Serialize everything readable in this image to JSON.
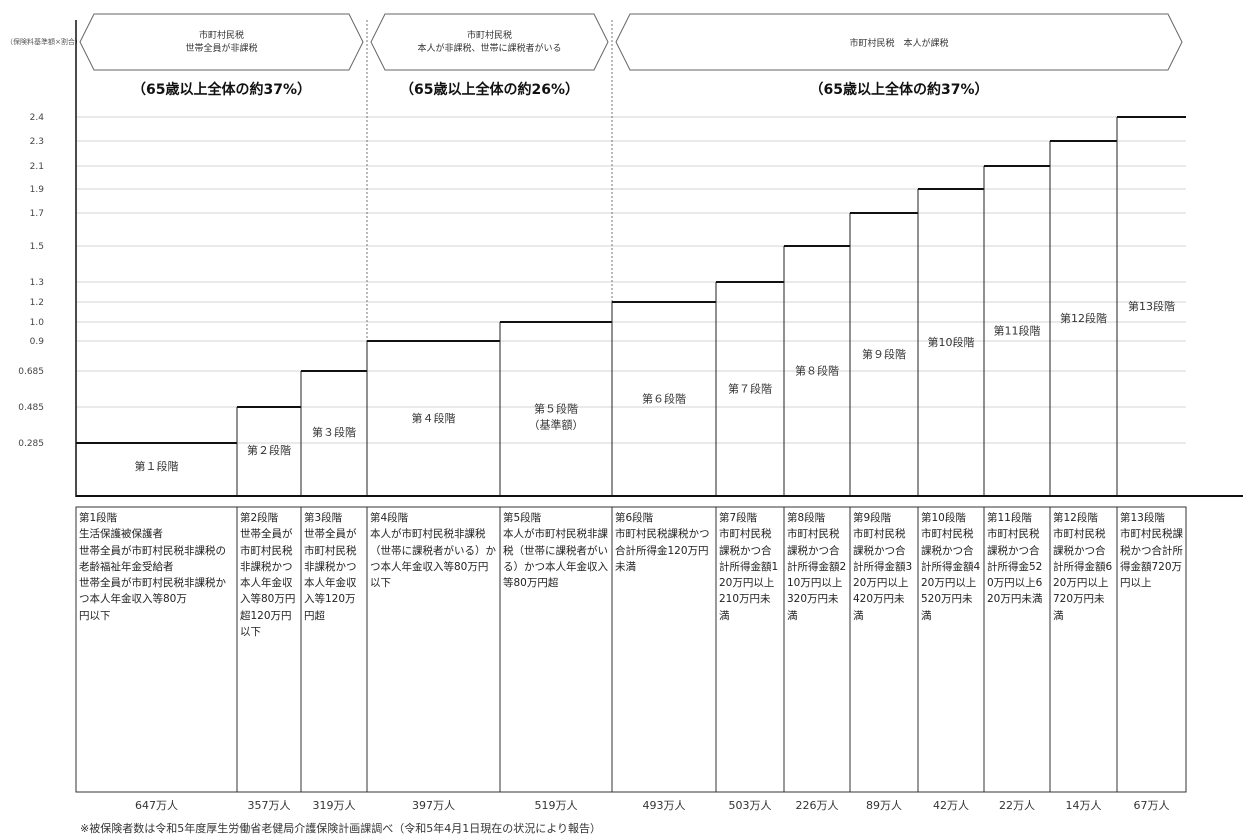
{
  "ylabel": "（保険料基準額×割合）",
  "groups": [
    {
      "title": "市町村民税\n世帯全員が非課税",
      "share": "（65歳以上全体の約37%）",
      "from": 0,
      "to": 3
    },
    {
      "title": "市町村民税\n本人が非課税、世帯に課税者がいる",
      "share": "（65歳以上全体の約26%）",
      "from": 3,
      "to": 5
    },
    {
      "title": "市町村民税　本人が課税",
      "share": "（65歳以上全体の約37%）",
      "from": 5,
      "to": 13
    }
  ],
  "footnote": "※被保険者数は令和5年度厚生労働省老健局介護保険計画課調べ（令和5年4月1日現在の状況により報告）",
  "chart_data": {
    "type": "bar",
    "title": "",
    "xlabel": "",
    "ylabel": "（保険料基準額×割合）",
    "yticks": [
      0.285,
      0.485,
      0.685,
      0.9,
      1.0,
      1.2,
      1.3,
      1.5,
      1.7,
      1.9,
      2.1,
      2.3,
      2.4
    ],
    "ytick_labels": [
      "0.285",
      "0.485",
      "0.685",
      "0.9",
      "1.0",
      "1.2",
      "1.3",
      "1.5",
      "1.7",
      "1.9",
      "2.1",
      "2.3",
      "2.4"
    ],
    "categories": [
      "第１段階",
      "第２段階",
      "第３段階",
      "第４段階",
      "第５段階",
      "第６段階",
      "第７段階",
      "第８段階",
      "第９段階",
      "第10段階",
      "第11段階",
      "第12段階",
      "第13段階"
    ],
    "sublabels": [
      "",
      "",
      "",
      "",
      "（基準額）",
      "",
      "",
      "",
      "",
      "",
      "",
      "",
      ""
    ],
    "values": [
      0.285,
      0.485,
      0.685,
      0.9,
      1.0,
      1.2,
      1.3,
      1.5,
      1.7,
      1.9,
      2.1,
      2.3,
      2.4
    ],
    "descriptions": [
      "第1段階\n生活保護被保護者\n世帯全員が市町村民税非課税の老齢福祉年金受給者\n世帯全員が市町村民税非課税かつ本人年金収入等80万\n円以下",
      "第2段階\n世帯全員が市町村民税非課税かつ本人年金収入等80万円超120万円以下",
      "第3段階\n世帯全員が市町村民税非課税かつ本人年金収入等120万円超",
      "第4段階\n本人が市町村民税非課税（世帯に課税者がいる）かつ本人年金収入等80万円以下",
      "第5段階\n本人が市町村民税非課税（世帯に課税者がいる）かつ本人年金収入等80万円超",
      "第6段階\n市町村民税課税かつ合計所得金120万円未満",
      "第7段階\n市町村民税課税かつ合計所得金額120万円以上210万円未満",
      "第8段階\n市町村民税課税かつ合計所得金額210万円以上320万円未満",
      "第9段階\n市町村民税課税かつ合計所得金額320万円以上420万円未満",
      "第10段階\n市町村民税課税かつ合計所得金額420万円以上520万円未満",
      "第11段階\n市町村民税課税かつ合計所得金520万円以上620万円未満",
      "第12段階\n市町村民税課税かつ合計所得金額620万円以上720万円未満",
      "第13段階\n市町村民税課税かつ合計所得金額720万円以上"
    ],
    "counts": [
      "647万人",
      "357万人",
      "319万人",
      "397万人",
      "519万人",
      "493万人",
      "503万人",
      "226万人",
      "89万人",
      "42万人",
      "22万人",
      "14万人",
      "67万人"
    ],
    "grid": true,
    "legend": "none"
  }
}
